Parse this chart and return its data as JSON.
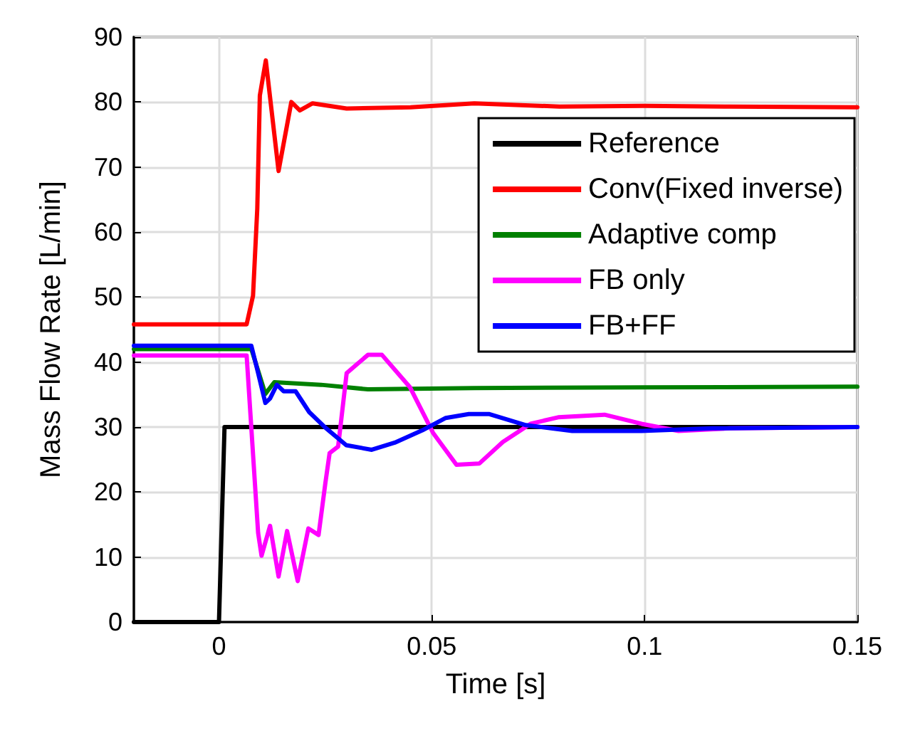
{
  "chart_data": {
    "type": "line",
    "xlabel": "Time [s]",
    "ylabel": "Mass Flow Rate [L/min]",
    "xlim": [
      -0.02,
      0.15
    ],
    "xticks": [
      0,
      0.05,
      0.1,
      0.15
    ],
    "ylim": [
      0,
      90
    ],
    "yticks": [
      0,
      10,
      20,
      30,
      40,
      50,
      60,
      70,
      80,
      90
    ],
    "grid": true,
    "legend": "top right",
    "marker": "none",
    "line_style": "solid",
    "series": [
      {
        "name": "Reference",
        "color": "#000000",
        "x": [
          -0.02,
          0,
          0.0013,
          0.15
        ],
        "values": [
          0,
          0,
          30,
          30
        ]
      },
      {
        "name": "Conv(Fixed inverse)",
        "color": "#ff0000",
        "x": [
          -0.02,
          0.0065,
          0.008,
          0.009,
          0.0096,
          0.011,
          0.014,
          0.017,
          0.019,
          0.022,
          0.03,
          0.045,
          0.06,
          0.08,
          0.1,
          0.12,
          0.15
        ],
        "values": [
          45.8,
          45.8,
          50.2,
          63.6,
          81,
          86.4,
          69.4,
          80,
          78.7,
          79.8,
          79,
          79.2,
          79.8,
          79.3,
          79.4,
          79.3,
          79.2
        ]
      },
      {
        "name": "Adaptive comp",
        "color": "#008000",
        "x": [
          -0.02,
          0.0076,
          0.0109,
          0.013,
          0.024,
          0.035,
          0.06,
          0.1,
          0.15
        ],
        "values": [
          42,
          42,
          35.1,
          36.9,
          36.5,
          35.8,
          36,
          36.1,
          36.2
        ]
      },
      {
        "name": "FB only",
        "color": "#ff00ff",
        "x": [
          -0.02,
          0.0065,
          0.0092,
          0.01,
          0.012,
          0.014,
          0.016,
          0.0185,
          0.021,
          0.0234,
          0.025,
          0.026,
          0.028,
          0.03,
          0.035,
          0.0383,
          0.0449,
          0.0503,
          0.0558,
          0.0612,
          0.0667,
          0.0732,
          0.0797,
          0.0906,
          0.0993,
          0.108,
          0.12,
          0.15
        ],
        "values": [
          41,
          41,
          13.7,
          10.2,
          14.8,
          7,
          14,
          6.3,
          14.4,
          13.4,
          21.4,
          26,
          27,
          38.3,
          41.1,
          41.1,
          36.1,
          29.1,
          24.2,
          24.4,
          27.7,
          30.5,
          31.5,
          31.9,
          30.5,
          29.4,
          29.8,
          30
        ]
      },
      {
        "name": "FB+FF",
        "color": "#0000ff",
        "x": [
          -0.02,
          0.0076,
          0.0092,
          0.0109,
          0.012,
          0.0136,
          0.0152,
          0.018,
          0.0212,
          0.025,
          0.0299,
          0.0359,
          0.0413,
          0.0478,
          0.0533,
          0.0587,
          0.0634,
          0.0721,
          0.083,
          0.0993,
          0.116,
          0.15
        ],
        "values": [
          42.5,
          42.5,
          38.3,
          33.7,
          34.4,
          36.5,
          35.5,
          35.5,
          32.3,
          29.9,
          27.2,
          26.5,
          27.6,
          29.5,
          31.4,
          32,
          32,
          30.3,
          29.4,
          29.4,
          29.8,
          30
        ]
      }
    ]
  }
}
